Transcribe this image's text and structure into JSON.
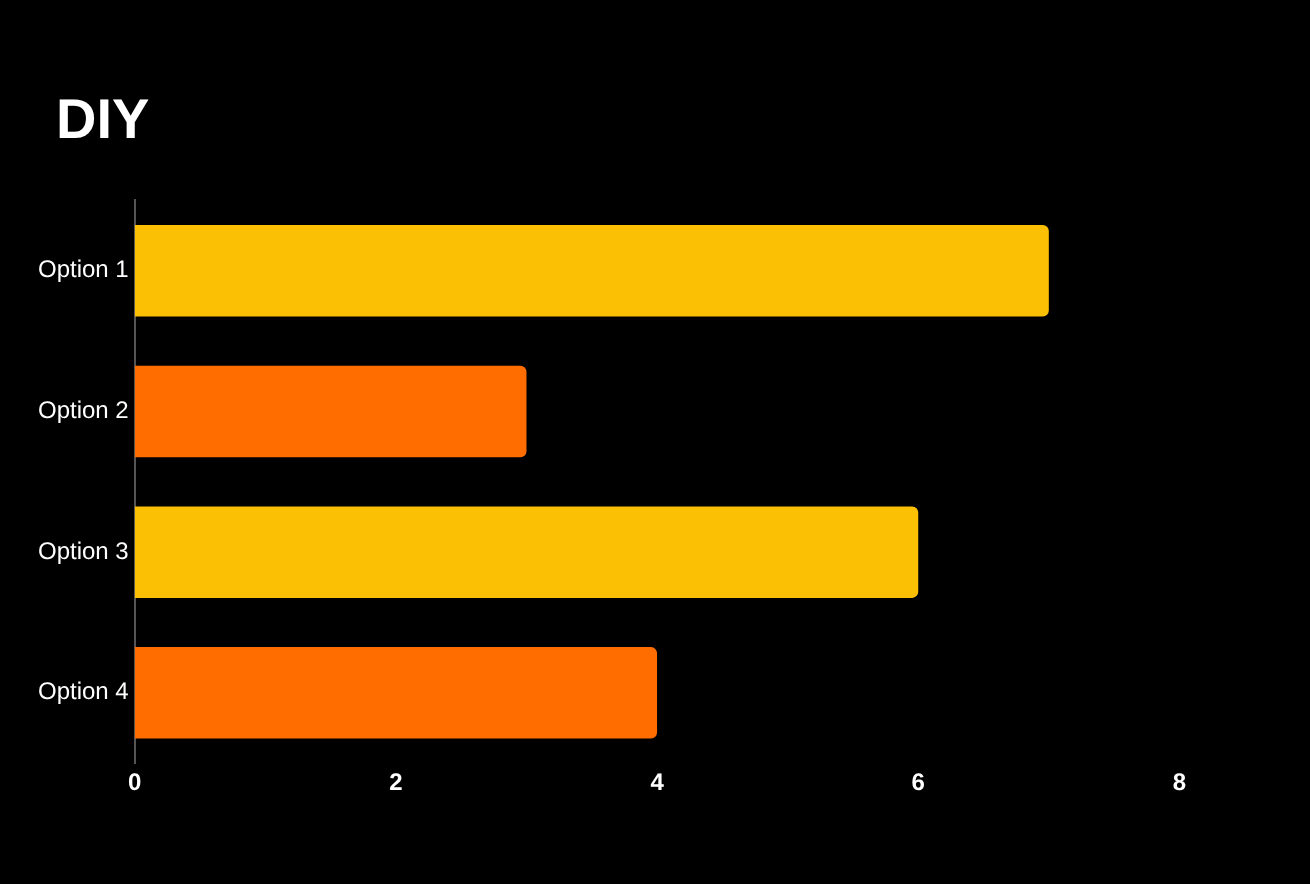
{
  "chart_data": {
    "type": "bar",
    "title": "DIY",
    "orientation": "horizontal",
    "categories": [
      "Option 1",
      "Option 2",
      "Option 3",
      "Option 4"
    ],
    "values": [
      7,
      3,
      6,
      4
    ],
    "colors": [
      "#fbbf04",
      "#ff6d00",
      "#fbbf04",
      "#ff6d00"
    ],
    "xlim": [
      0,
      9
    ],
    "xticks": [
      0,
      2,
      4,
      6,
      8
    ],
    "grid": false,
    "legend": false
  }
}
